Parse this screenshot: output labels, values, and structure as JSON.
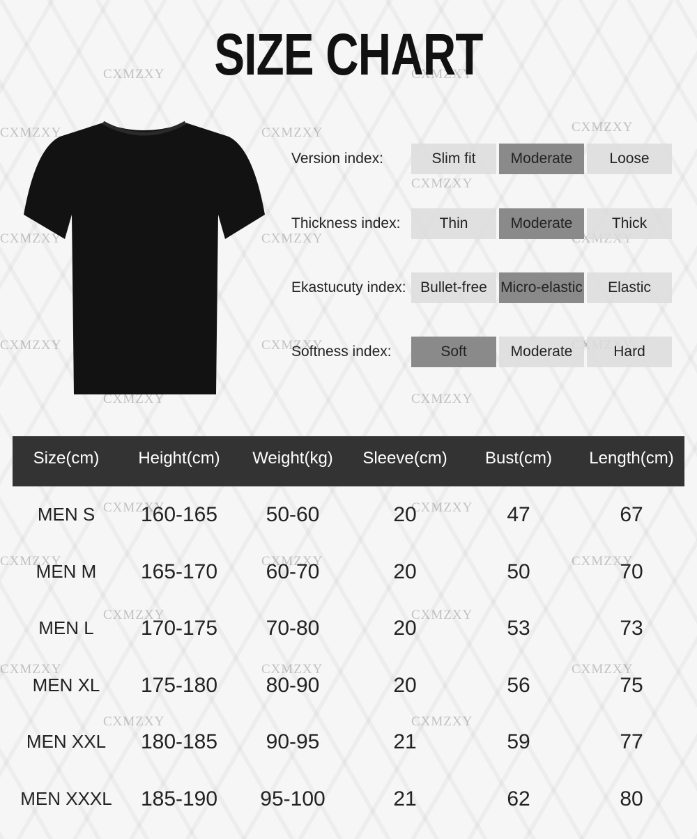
{
  "title": "SIZE CHART",
  "watermark": "CXMZXY",
  "indices": [
    {
      "label": "Version index:",
      "options": [
        "Slim fit",
        "Moderate",
        "Loose"
      ],
      "selected": 1
    },
    {
      "label": "Thickness index:",
      "options": [
        "Thin",
        "Moderate",
        "Thick"
      ],
      "selected": 1
    },
    {
      "label": "Ekastucuty index:",
      "options": [
        "Bullet-free",
        "Micro-elastic",
        "Elastic"
      ],
      "selected": 1
    },
    {
      "label": "Softness index:",
      "options": [
        "Soft",
        "Moderate",
        "Hard"
      ],
      "selected": 0
    }
  ],
  "colors": {
    "selected": "#8a8a8a",
    "unselected": "#dcdcdc",
    "header": "#333333"
  },
  "table": {
    "headers": [
      "Size(cm)",
      "Height(cm)",
      "Weight(kg)",
      "Sleeve(cm)",
      "Bust(cm)",
      "Length(cm)"
    ],
    "rows": [
      [
        "MEN S",
        "160-165",
        "50-60",
        "20",
        "47",
        "67"
      ],
      [
        "MEN M",
        "165-170",
        "60-70",
        "20",
        "50",
        "70"
      ],
      [
        "MEN L",
        "170-175",
        "70-80",
        "20",
        "53",
        "73"
      ],
      [
        "MEN XL",
        "175-180",
        "80-90",
        "20",
        "56",
        "75"
      ],
      [
        "MEN XXL",
        "180-185",
        "90-95",
        "21",
        "59",
        "77"
      ],
      [
        "MEN XXXL",
        "185-190",
        "95-100",
        "21",
        "62",
        "80"
      ]
    ]
  }
}
